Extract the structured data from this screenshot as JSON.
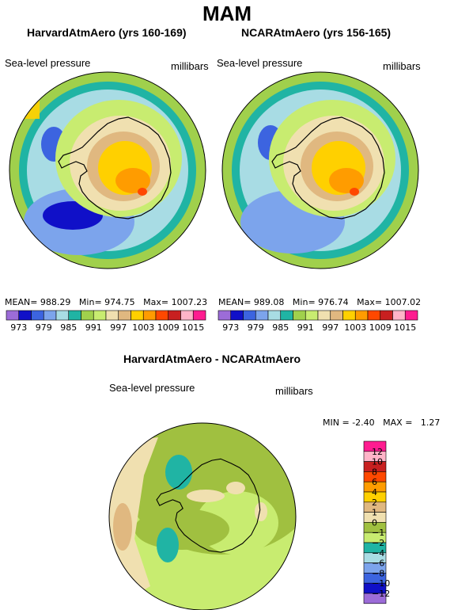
{
  "figure": {
    "title": "MAM",
    "panels": [
      {
        "title": "HarvardAtmAero (yrs 160-169)",
        "variable": "Sea-level pressure",
        "units": "millibars",
        "mean_label": "MEAN=",
        "mean": "988.29",
        "min_label": "Min=",
        "min": "974.75",
        "max_label": "Max=",
        "max": "1007.23"
      },
      {
        "title": "NCARAtmAero (yrs 156-165)",
        "variable": "Sea-level pressure",
        "units": "millibars",
        "mean_label": "MEAN=",
        "mean": "989.08",
        "min_label": "Min=",
        "min": "976.74",
        "max_label": "Max=",
        "max": "1007.02"
      }
    ],
    "diff_panel": {
      "title": "HarvardAtmAero - NCARAtmAero",
      "variable": "Sea-level pressure",
      "units": "millibars",
      "min_label": "MIN =",
      "min": "-2.40",
      "max_label": "MAX =",
      "max": "1.27"
    }
  },
  "chart_data": [
    {
      "type": "heatmap",
      "projection": "south-polar-stereographic",
      "title": "HarvardAtmAero (yrs 160-169)",
      "variable": "Sea-level pressure",
      "units": "millibars",
      "stats": {
        "mean": 988.29,
        "min": 974.75,
        "max": 1007.23
      },
      "legend_levels": [
        973,
        979,
        982,
        985,
        988,
        991,
        994,
        997,
        1000,
        1003,
        1006,
        1009,
        1012,
        1015
      ],
      "legend_tick_labels": [
        "973",
        "979",
        "985",
        "991",
        "997",
        "1003",
        "1009",
        "1015"
      ],
      "legend_colors": [
        "#9c6cd8",
        "#1010c8",
        "#3c64e0",
        "#7ca4ec",
        "#a8dce4",
        "#20b4a4",
        "#a0d04c",
        "#c8ec70",
        "#f0e0b0",
        "#e0b880",
        "#ffd000",
        "#ff9c00",
        "#ff4800",
        "#c82020",
        "#ffb4c8",
        "#ff1c90"
      ],
      "legend_placement": "bottom"
    },
    {
      "type": "heatmap",
      "projection": "south-polar-stereographic",
      "title": "NCARAtmAero (yrs 156-165)",
      "variable": "Sea-level pressure",
      "units": "millibars",
      "stats": {
        "mean": 989.08,
        "min": 976.74,
        "max": 1007.02
      },
      "legend_levels": [
        973,
        979,
        982,
        985,
        988,
        991,
        994,
        997,
        1000,
        1003,
        1006,
        1009,
        1012,
        1015
      ],
      "legend_tick_labels": [
        "973",
        "979",
        "985",
        "991",
        "997",
        "1003",
        "1009",
        "1015"
      ],
      "legend_placement": "bottom"
    },
    {
      "type": "heatmap",
      "projection": "south-polar-stereographic",
      "title": "HarvardAtmAero - NCARAtmAero",
      "variable": "Sea-level pressure",
      "units": "millibars",
      "stats": {
        "min": -2.4,
        "max": 1.27
      },
      "legend_levels": [
        12,
        10,
        8,
        6,
        4,
        2,
        1,
        0,
        -1,
        -2,
        -4,
        -6,
        -8,
        -10,
        -12
      ],
      "legend_tick_labels": [
        "12",
        "10",
        "8",
        "6",
        "4",
        "2",
        "1",
        "0",
        "−1",
        "−2",
        "−4",
        "−6",
        "−8",
        "−10",
        "−12"
      ],
      "legend_colors": [
        "#ff1c90",
        "#ffb4c8",
        "#c82020",
        "#ff4800",
        "#ff9c00",
        "#ffd000",
        "#e0b880",
        "#f0e0b0",
        "#a0c040",
        "#c8ec70",
        "#20b4a4",
        "#a8dce4",
        "#7ca4ec",
        "#3c64e0",
        "#1010c8",
        "#9c6cd8"
      ],
      "legend_placement": "right"
    }
  ]
}
